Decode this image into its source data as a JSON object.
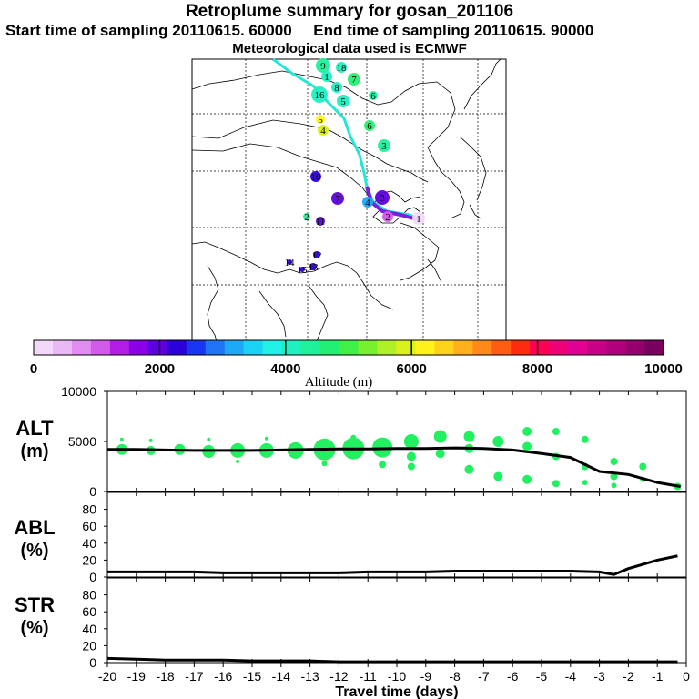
{
  "header": {
    "title": "Retroplume summary for gosan_201106",
    "sampling": "Start time of sampling 20110615. 60000     End time of sampling 20110615. 90000",
    "meteo": "Meteorological data used is ECMWF"
  },
  "colorbar": {
    "ticks": [
      "0",
      "2000",
      "4000",
      "6000",
      "8000",
      "10000"
    ],
    "label": "Altitude (m)",
    "colors": [
      "#f3d9f9",
      "#eab8f5",
      "#e08cf0",
      "#d25be9",
      "#b21ee6",
      "#8a00e6",
      "#5e00e0",
      "#2c00d8",
      "#1a36f0",
      "#1f74f5",
      "#1fa8f5",
      "#1cd2f2",
      "#22f0e6",
      "#1ff0c0",
      "#1ff09a",
      "#22f072",
      "#40f048",
      "#78f030",
      "#b0f028",
      "#dcf01c",
      "#fff21a",
      "#ffd21c",
      "#ffb01c",
      "#ff8a1a",
      "#ff5c14",
      "#ff2a10",
      "#ff0052",
      "#f00078",
      "#e00094",
      "#c80088",
      "#b0007c",
      "#96006e",
      "#7a0060"
    ]
  },
  "map": {
    "markers": [
      {
        "label": "1",
        "alt": 100
      },
      {
        "label": "2",
        "alt": 1200
      },
      {
        "label": "3",
        "alt": 1900
      },
      {
        "label": "4",
        "alt": 3200
      },
      {
        "label": "5",
        "alt": 4200
      },
      {
        "label": "6",
        "alt": 4300
      },
      {
        "label": "3",
        "alt": 4400
      },
      {
        "label": "4",
        "alt": 5800
      },
      {
        "label": "5",
        "alt": 6100
      },
      {
        "label": "6",
        "alt": 4600
      },
      {
        "label": "7",
        "alt": 4700
      },
      {
        "label": "8",
        "alt": 4200
      },
      {
        "label": "9",
        "alt": 4300
      },
      {
        "label": "10",
        "alt": 2200
      },
      {
        "label": "11",
        "alt": 2100
      },
      {
        "label": "12",
        "alt": 2200
      },
      {
        "label": "13",
        "alt": 2200
      },
      {
        "label": "14",
        "alt": 2300
      },
      {
        "label": "15",
        "alt": 2200
      },
      {
        "label": "16",
        "alt": 4100
      },
      {
        "label": "7",
        "alt": 2000
      },
      {
        "label": "18",
        "alt": 4200
      },
      {
        "label": "1",
        "alt": 4200
      },
      {
        "label": "2",
        "alt": 4300
      }
    ]
  },
  "chart_data": [
    {
      "type": "line",
      "name": "ALT",
      "ylabel": "ALT\n(m)",
      "ylim": [
        0,
        10000
      ],
      "yticks": [
        "0",
        "5000",
        "10000"
      ],
      "x": [
        -20,
        -19,
        -18,
        -17,
        -16,
        -15,
        -14,
        -13,
        -12,
        -11,
        -10,
        -9,
        -8,
        -7,
        -6,
        -5,
        -4,
        -3,
        -2,
        -1,
        -0.2
      ],
      "values": [
        4200,
        4200,
        4150,
        4100,
        4100,
        4100,
        4150,
        4200,
        4250,
        4250,
        4300,
        4300,
        4350,
        4300,
        4150,
        3800,
        3400,
        2000,
        1700,
        900,
        500
      ],
      "scatter_points": [
        {
          "x": -19.5,
          "y": 4200,
          "size": 6
        },
        {
          "x": -19.5,
          "y": 5200,
          "size": 2
        },
        {
          "x": -18.5,
          "y": 4100,
          "size": 5
        },
        {
          "x": -18.5,
          "y": 5100,
          "size": 2
        },
        {
          "x": -17.5,
          "y": 4200,
          "size": 6
        },
        {
          "x": -16.5,
          "y": 4000,
          "size": 7
        },
        {
          "x": -16.5,
          "y": 5200,
          "size": 2
        },
        {
          "x": -15.5,
          "y": 4100,
          "size": 8
        },
        {
          "x": -15.5,
          "y": 3000,
          "size": 2
        },
        {
          "x": -14.5,
          "y": 4100,
          "size": 8
        },
        {
          "x": -14.5,
          "y": 5300,
          "size": 2
        },
        {
          "x": -13.5,
          "y": 4100,
          "size": 9
        },
        {
          "x": -12.5,
          "y": 4200,
          "size": 12
        },
        {
          "x": -12.5,
          "y": 2800,
          "size": 3
        },
        {
          "x": -11.5,
          "y": 4300,
          "size": 12
        },
        {
          "x": -11.5,
          "y": 5400,
          "size": 3
        },
        {
          "x": -10.5,
          "y": 4400,
          "size": 11
        },
        {
          "x": -10.5,
          "y": 2700,
          "size": 4
        },
        {
          "x": -9.5,
          "y": 5000,
          "size": 8
        },
        {
          "x": -9.5,
          "y": 3500,
          "size": 5
        },
        {
          "x": -9.5,
          "y": 2500,
          "size": 4
        },
        {
          "x": -8.5,
          "y": 5500,
          "size": 7
        },
        {
          "x": -8.5,
          "y": 3800,
          "size": 5
        },
        {
          "x": -7.5,
          "y": 5500,
          "size": 6
        },
        {
          "x": -7.5,
          "y": 4300,
          "size": 5
        },
        {
          "x": -7.5,
          "y": 2200,
          "size": 5
        },
        {
          "x": -6.5,
          "y": 5000,
          "size": 6
        },
        {
          "x": -6.5,
          "y": 1500,
          "size": 5
        },
        {
          "x": -5.5,
          "y": 6000,
          "size": 5
        },
        {
          "x": -5.5,
          "y": 4500,
          "size": 5
        },
        {
          "x": -5.5,
          "y": 1200,
          "size": 5
        },
        {
          "x": -4.5,
          "y": 6000,
          "size": 4
        },
        {
          "x": -4.5,
          "y": 3500,
          "size": 4
        },
        {
          "x": -4.5,
          "y": 800,
          "size": 4
        },
        {
          "x": -3.5,
          "y": 5200,
          "size": 4
        },
        {
          "x": -3.5,
          "y": 2500,
          "size": 4
        },
        {
          "x": -3.5,
          "y": 900,
          "size": 3
        },
        {
          "x": -2.5,
          "y": 3000,
          "size": 4
        },
        {
          "x": -2.5,
          "y": 1500,
          "size": 4
        },
        {
          "x": -2.5,
          "y": 600,
          "size": 3
        },
        {
          "x": -1.5,
          "y": 2500,
          "size": 4
        },
        {
          "x": -1.5,
          "y": 1200,
          "size": 3
        },
        {
          "x": -0.3,
          "y": 500,
          "size": 4
        }
      ]
    },
    {
      "type": "line",
      "name": "ABL",
      "ylabel": "ABL\n(%)",
      "ylim": [
        0,
        100
      ],
      "yticks": [
        "0",
        "20",
        "40",
        "60",
        "80"
      ],
      "x": [
        -20,
        -19,
        -18,
        -17,
        -16,
        -15,
        -14,
        -13,
        -12,
        -11,
        -10,
        -9,
        -8,
        -7,
        -6,
        -5,
        -4,
        -3,
        -2.5,
        -2,
        -1.5,
        -1,
        -0.3
      ],
      "values": [
        6,
        6,
        6,
        6,
        5,
        5,
        5,
        5,
        5,
        6,
        6,
        6,
        7,
        7,
        7,
        7,
        7,
        6,
        3,
        10,
        15,
        20,
        25
      ]
    },
    {
      "type": "line",
      "name": "STR",
      "ylabel": "STR\n(%)",
      "ylim": [
        0,
        100
      ],
      "yticks": [
        "0",
        "20",
        "40",
        "60",
        "80"
      ],
      "x": [
        -20,
        -19,
        -18,
        -17,
        -16,
        -15,
        -14,
        -13,
        -12,
        -11,
        -10,
        -9,
        -8,
        -7,
        -6,
        -5,
        -4,
        -3,
        -2,
        -1,
        -0.3
      ],
      "values": [
        5,
        4,
        3,
        3,
        3,
        2,
        2,
        2,
        1,
        1,
        1,
        1,
        1,
        1,
        1,
        1,
        1,
        1,
        1,
        1,
        1
      ],
      "xlabel": "Travel time (days)",
      "xticks": [
        "-20",
        "-19",
        "-18",
        "-17",
        "-16",
        "-15",
        "-14",
        "-13",
        "-12",
        "-11",
        "-10",
        "-9",
        "-8",
        "-7",
        "-6",
        "-5",
        "-4",
        "-3",
        "-2",
        "-1",
        "0"
      ]
    }
  ]
}
